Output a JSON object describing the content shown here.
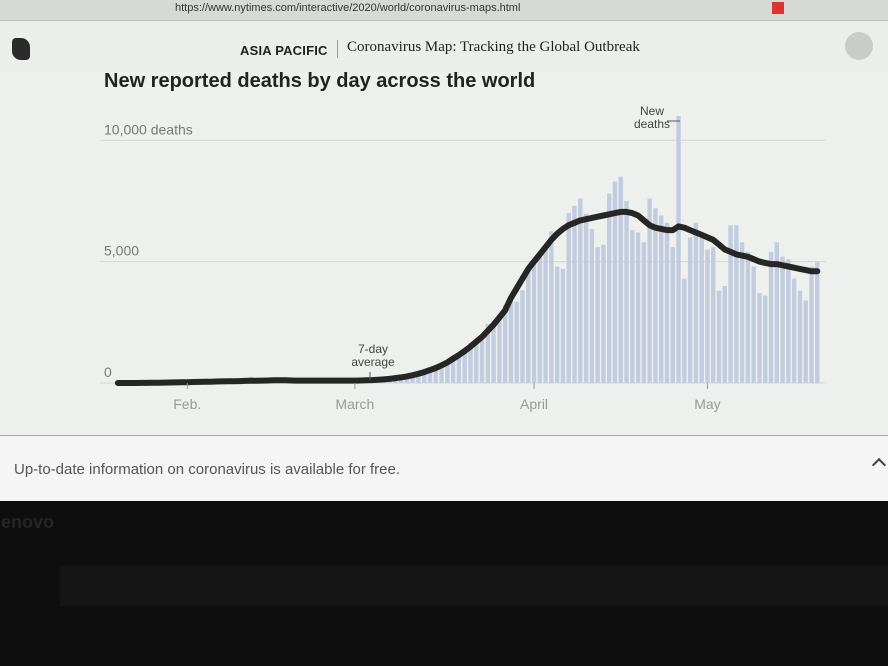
{
  "browser": {
    "url": "https://www.nytimes.com/interactive/2020/world/coronavirus-maps.html"
  },
  "header": {
    "section": "ASIA PACIFIC",
    "title": "Coronavirus Map: Tracking the Global Outbreak"
  },
  "chart_data": {
    "type": "bar",
    "title": "New reported deaths by day across the world",
    "categories": [
      null,
      null,
      null,
      null,
      null,
      null,
      null,
      null,
      null,
      null,
      null,
      null,
      "Feb.",
      null,
      null,
      null,
      null,
      null,
      null,
      null,
      null,
      null,
      null,
      null,
      null,
      null,
      null,
      null,
      null,
      null,
      null,
      null,
      null,
      null,
      null,
      null,
      null,
      null,
      null,
      null,
      null,
      "March",
      null,
      null,
      null,
      null,
      null,
      null,
      null,
      null,
      null,
      null,
      null,
      null,
      null,
      null,
      null,
      null,
      null,
      null,
      null,
      null,
      null,
      null,
      null,
      null,
      null,
      null,
      null,
      null,
      null,
      null,
      "April",
      null,
      null,
      null,
      null,
      null,
      null,
      null,
      null,
      null,
      null,
      null,
      null,
      null,
      null,
      null,
      null,
      null,
      null,
      null,
      null,
      null,
      null,
      null,
      null,
      null,
      null,
      null,
      null,
      null,
      "May",
      null,
      null,
      null,
      null,
      null,
      null,
      null,
      null,
      null,
      null,
      null,
      null,
      null,
      null,
      null,
      null,
      null,
      null,
      null
    ],
    "series": [
      {
        "name": "New deaths",
        "type": "bar",
        "color": "#c3cbdf",
        "values": [
          0,
          0,
          3,
          9,
          8,
          16,
          14,
          26,
          26,
          38,
          43,
          46,
          45,
          57,
          64,
          66,
          73,
          73,
          86,
          89,
          97,
          108,
          97,
          254,
          13,
          143,
          142,
          106,
          98,
          139,
          112,
          118,
          109,
          97,
          150,
          71,
          64,
          72,
          36,
          58,
          69,
          54,
          76,
          82,
          113,
          98,
          142,
          159,
          205,
          226,
          252,
          323,
          352,
          420,
          510,
          545,
          805,
          845,
          980,
          1220,
          1380,
          1640,
          1690,
          1760,
          2430,
          2530,
          2730,
          3210,
          3370,
          3350,
          3820,
          4580,
          4900,
          5420,
          5600,
          6250,
          4800,
          4700,
          7000,
          7300,
          7600,
          6970,
          6340,
          5600,
          5700,
          7800,
          8300,
          8500,
          7500,
          6300,
          6200,
          5800,
          7600,
          7200,
          6900,
          6600,
          5600,
          11000,
          4300,
          6000,
          6600,
          6000,
          5500,
          5600,
          3800,
          4000,
          6500,
          6500,
          5800,
          5400,
          4800,
          3700,
          3600,
          5400,
          5800,
          5200,
          5100,
          4300,
          3800,
          3400,
          4800,
          5000
        ]
      },
      {
        "name": "7-day average",
        "type": "line",
        "color": "#262626",
        "values": [
          0,
          0,
          1,
          2,
          3,
          5,
          8,
          10,
          15,
          20,
          25,
          30,
          35,
          40,
          45,
          50,
          55,
          60,
          65,
          70,
          75,
          80,
          85,
          90,
          95,
          100,
          105,
          110,
          110,
          110,
          105,
          100,
          100,
          100,
          100,
          100,
          100,
          100,
          100,
          100,
          100,
          100,
          105,
          110,
          120,
          130,
          150,
          170,
          200,
          230,
          270,
          320,
          380,
          450,
          530,
          620,
          730,
          850,
          1000,
          1150,
          1320,
          1500,
          1700,
          1900,
          2150,
          2400,
          2700,
          3000,
          3500,
          3900,
          4300,
          4700,
          5000,
          5300,
          5600,
          5900,
          6150,
          6350,
          6500,
          6600,
          6700,
          6750,
          6800,
          6850,
          6900,
          6950,
          7000,
          7050,
          7050,
          7000,
          6900,
          6700,
          6500,
          6400,
          6350,
          6300,
          6300,
          6450,
          6400,
          6300,
          6200,
          6100,
          6000,
          5900,
          5700,
          5500,
          5400,
          5300,
          5250,
          5200,
          5100,
          5000,
          4950,
          4900,
          4900,
          4850,
          4800,
          4750,
          4700,
          4650,
          4600,
          4600
        ]
      }
    ],
    "ylim": [
      0,
      11000
    ],
    "yticks": [
      0,
      {
        "value": 5000,
        "label": "5,000"
      },
      {
        "value": 10000,
        "label": "10,000 deaths"
      }
    ],
    "grid": true
  },
  "footer": {
    "text": "Up-to-date information on coronavirus is available for free."
  },
  "device": {
    "brand": "lenovo"
  }
}
